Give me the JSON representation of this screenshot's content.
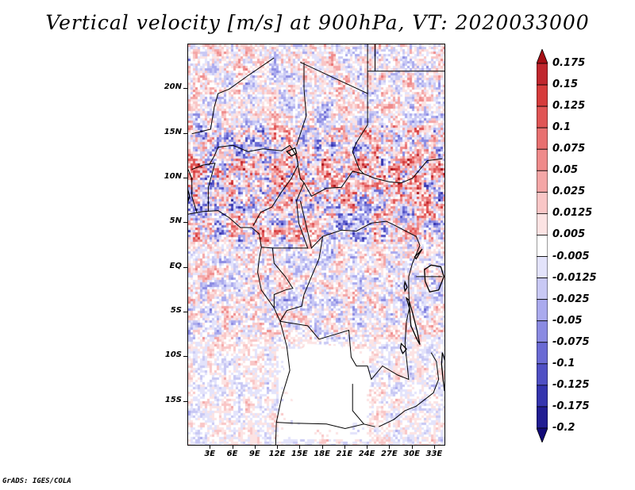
{
  "title": "Vertical velocity [m/s] at 900hPa, VT: 2020033000",
  "credit": "GrADS: IGES/COLA",
  "map": {
    "lon_range": [
      0,
      34.5
    ],
    "lat_range": [
      -20,
      25
    ],
    "lat_labels": [
      {
        "lat": 20,
        "text": "20N"
      },
      {
        "lat": 15,
        "text": "15N"
      },
      {
        "lat": 10,
        "text": "10N"
      },
      {
        "lat": 5,
        "text": "5N"
      },
      {
        "lat": 0,
        "text": "EQ"
      },
      {
        "lat": -5,
        "text": "5S"
      },
      {
        "lat": -10,
        "text": "10S"
      },
      {
        "lat": -15,
        "text": "15S"
      }
    ],
    "lon_labels": [
      {
        "lon": 3,
        "text": "3E"
      },
      {
        "lon": 6,
        "text": "6E"
      },
      {
        "lon": 9,
        "text": "9E"
      },
      {
        "lon": 12,
        "text": "12E"
      },
      {
        "lon": 15,
        "text": "15E"
      },
      {
        "lon": 18,
        "text": "18E"
      },
      {
        "lon": 21,
        "text": "21E"
      },
      {
        "lon": 24,
        "text": "24E"
      },
      {
        "lon": 27,
        "text": "27E"
      },
      {
        "lon": 30,
        "text": "30E"
      },
      {
        "lon": 33,
        "text": "33E"
      }
    ]
  },
  "colorbar": {
    "labels": [
      "0.175",
      "0.15",
      "0.125",
      "0.1",
      "0.075",
      "0.05",
      "0.025",
      "0.0125",
      "0.005",
      "-0.005",
      "-0.0125",
      "-0.025",
      "-0.05",
      "-0.075",
      "-0.1",
      "-0.125",
      "-0.175",
      "-0.2"
    ],
    "colors": [
      "#a50f15",
      "#c0262d",
      "#d63b3b",
      "#e05454",
      "#e87070",
      "#ef8a8a",
      "#f4a6a6",
      "#f9c6c6",
      "#fce3e3",
      "#ffffff",
      "#e3e3fb",
      "#c8c8f4",
      "#aaaaee",
      "#8a8ae2",
      "#6a6ad4",
      "#4f4fc4",
      "#3434ae",
      "#201c92",
      "#120a78"
    ]
  }
}
